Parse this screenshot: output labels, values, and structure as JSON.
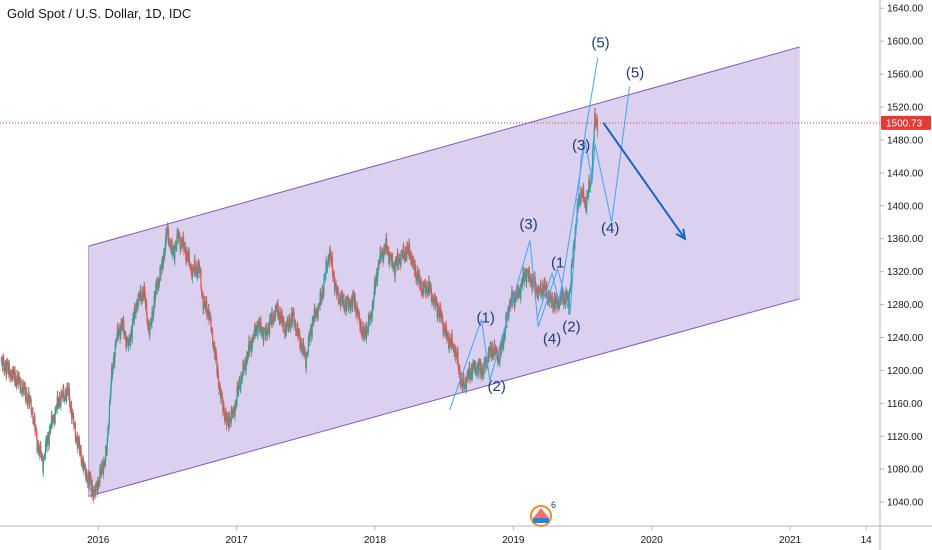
{
  "chart_data": {
    "type": "candlestick",
    "title": "Gold Spot / U.S. Dollar, 1D, IDC",
    "x_ticks": [
      "2016",
      "2017",
      "2018",
      "2019",
      "2020",
      "2021",
      "14"
    ],
    "y_ticks": [
      1040,
      1080,
      1120,
      1160,
      1200,
      1240,
      1280,
      1320,
      1360,
      1400,
      1440,
      1480,
      1520,
      1560,
      1600,
      1640
    ],
    "ylim": [
      1011,
      1650
    ],
    "xlim": [
      2015.29,
      2021.65
    ],
    "last_price": "1500.73",
    "last_price_value": 1500.73,
    "price_path": [
      [
        2015.3,
        1210
      ],
      [
        2015.38,
        1195
      ],
      [
        2015.45,
        1180
      ],
      [
        2015.52,
        1155
      ],
      [
        2015.56,
        1110
      ],
      [
        2015.6,
        1090
      ],
      [
        2015.66,
        1135
      ],
      [
        2015.72,
        1165
      ],
      [
        2015.78,
        1175
      ],
      [
        2015.84,
        1120
      ],
      [
        2015.9,
        1080
      ],
      [
        2015.95,
        1060
      ],
      [
        2015.97,
        1050
      ],
      [
        2016.02,
        1075
      ],
      [
        2016.06,
        1100
      ],
      [
        2016.09,
        1180
      ],
      [
        2016.13,
        1240
      ],
      [
        2016.17,
        1255
      ],
      [
        2016.22,
        1230
      ],
      [
        2016.28,
        1285
      ],
      [
        2016.33,
        1295
      ],
      [
        2016.37,
        1245
      ],
      [
        2016.42,
        1300
      ],
      [
        2016.46,
        1325
      ],
      [
        2016.5,
        1370
      ],
      [
        2016.54,
        1340
      ],
      [
        2016.58,
        1365
      ],
      [
        2016.63,
        1345
      ],
      [
        2016.68,
        1320
      ],
      [
        2016.73,
        1325
      ],
      [
        2016.76,
        1280
      ],
      [
        2016.8,
        1270
      ],
      [
        2016.84,
        1225
      ],
      [
        2016.88,
        1175
      ],
      [
        2016.93,
        1135
      ],
      [
        2016.98,
        1150
      ],
      [
        2017.03,
        1190
      ],
      [
        2017.1,
        1230
      ],
      [
        2017.15,
        1255
      ],
      [
        2017.21,
        1245
      ],
      [
        2017.25,
        1260
      ],
      [
        2017.29,
        1275
      ],
      [
        2017.35,
        1250
      ],
      [
        2017.41,
        1265
      ],
      [
        2017.45,
        1240
      ],
      [
        2017.5,
        1215
      ],
      [
        2017.55,
        1260
      ],
      [
        2017.61,
        1285
      ],
      [
        2017.67,
        1345
      ],
      [
        2017.72,
        1295
      ],
      [
        2017.78,
        1280
      ],
      [
        2017.85,
        1285
      ],
      [
        2017.92,
        1240
      ],
      [
        2017.97,
        1265
      ],
      [
        2018.03,
        1335
      ],
      [
        2018.08,
        1350
      ],
      [
        2018.14,
        1325
      ],
      [
        2018.19,
        1340
      ],
      [
        2018.25,
        1345
      ],
      [
        2018.29,
        1320
      ],
      [
        2018.34,
        1300
      ],
      [
        2018.39,
        1300
      ],
      [
        2018.44,
        1280
      ],
      [
        2018.48,
        1265
      ],
      [
        2018.52,
        1240
      ],
      [
        2018.58,
        1225
      ],
      [
        2018.63,
        1180
      ],
      [
        2018.68,
        1195
      ],
      [
        2018.72,
        1205
      ],
      [
        2018.78,
        1200
      ],
      [
        2018.82,
        1220
      ],
      [
        2018.86,
        1225
      ],
      [
        2018.9,
        1215
      ],
      [
        2018.93,
        1240
      ],
      [
        2018.97,
        1280
      ],
      [
        2019.04,
        1295
      ],
      [
        2019.09,
        1320
      ],
      [
        2019.13,
        1310
      ],
      [
        2019.18,
        1295
      ],
      [
        2019.22,
        1300
      ],
      [
        2019.27,
        1285
      ],
      [
        2019.31,
        1280
      ],
      [
        2019.35,
        1290
      ],
      [
        2019.4,
        1285
      ],
      [
        2019.43,
        1340
      ],
      [
        2019.46,
        1390
      ],
      [
        2019.49,
        1420
      ],
      [
        2019.52,
        1400
      ],
      [
        2019.56,
        1430
      ],
      [
        2019.59,
        1505
      ],
      [
        2019.61,
        1500
      ]
    ],
    "annotations": {
      "channel": {
        "color": "#7e57c2",
        "upper": [
          [
            2015.93,
            1351
          ],
          [
            2021.07,
            1593
          ]
        ],
        "lower": [
          [
            2015.93,
            1047
          ],
          [
            2021.07,
            1287
          ]
        ]
      },
      "price_line_color": "#e53935",
      "arrow": {
        "from": [
          2019.65,
          1501
        ],
        "to": [
          2020.24,
          1360
        ],
        "color": "#1565c0"
      },
      "wave_paths": [
        [
          [
            2018.54,
            1152
          ],
          [
            2018.77,
            1262
          ],
          [
            2018.83,
            1188
          ],
          [
            2019.12,
            1358
          ],
          [
            2019.18,
            1253
          ],
          [
            2019.32,
            1323
          ],
          [
            2019.41,
            1268
          ],
          [
            2019.49,
            1458
          ],
          [
            2019.61,
            1580
          ]
        ],
        [
          [
            2019.17,
            1262
          ],
          [
            2019.28,
            1318
          ],
          [
            2019.33,
            1283
          ],
          [
            2019.52,
            1478
          ],
          [
            2019.57,
            1430
          ],
          [
            2019.59,
            1475
          ],
          [
            2019.71,
            1380
          ],
          [
            2019.84,
            1545
          ]
        ]
      ],
      "wave_labels": [
        {
          "text": "(1)",
          "x": 2018.8,
          "y": 1258
        },
        {
          "text": "(2)",
          "x": 2018.88,
          "y": 1175
        },
        {
          "text": "(3)",
          "x": 2019.11,
          "y": 1372
        },
        {
          "text": "(1",
          "x": 2019.32,
          "y": 1325
        },
        {
          "text": "(4)",
          "x": 2019.28,
          "y": 1233
        },
        {
          "text": "(2)",
          "x": 2019.42,
          "y": 1247
        },
        {
          "text": "(3)",
          "x": 2019.49,
          "y": 1468
        },
        {
          "text": "(5)",
          "x": 2019.63,
          "y": 1592
        },
        {
          "text": "(5)",
          "x": 2019.88,
          "y": 1556
        },
        {
          "text": "(4)",
          "x": 2019.7,
          "y": 1367
        }
      ]
    },
    "colors": {
      "up": "#26a69a",
      "down": "#ef5350",
      "axis_label_bg": "#e53935"
    }
  }
}
